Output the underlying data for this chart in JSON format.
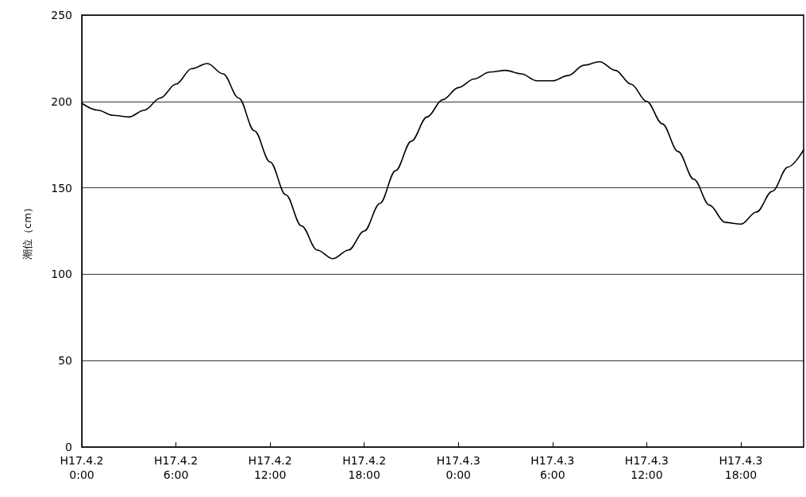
{
  "chart_data": {
    "type": "line",
    "ylabel": "潮位（cm）",
    "categories": [
      "H17.4.2\n0:00",
      null,
      null,
      null,
      null,
      null,
      "H17.4.2\n6:00",
      null,
      null,
      null,
      null,
      null,
      "H17.4.2\n12:00",
      null,
      null,
      null,
      null,
      null,
      "H17.4.2\n18:00",
      null,
      null,
      null,
      null,
      null,
      "H17.4.3\n0:00",
      null,
      null,
      null,
      null,
      null,
      "H17.4.3\n6:00",
      null,
      null,
      null,
      null,
      null,
      "H17.4.3\n12:00",
      null,
      null,
      null,
      null,
      null,
      "H17.4.3\n18:00",
      null,
      null,
      null,
      null
    ],
    "series": [
      {
        "color": "#000000",
        "values": [
          199,
          195,
          192,
          191,
          195,
          202,
          210,
          219,
          222,
          216,
          202,
          183,
          165,
          146,
          128,
          114,
          109,
          114,
          125,
          141,
          160,
          177,
          191,
          201,
          208,
          213,
          217,
          218,
          216,
          212,
          212,
          215,
          221,
          223,
          218,
          210,
          200,
          187,
          171,
          155,
          140,
          130,
          129,
          136,
          148,
          162,
          172
        ]
      }
    ],
    "ylim": [
      0,
      250
    ],
    "yticks": [
      0,
      50,
      100,
      150,
      200,
      250
    ],
    "grid": "y",
    "marker": "none",
    "line_style": "solid"
  }
}
